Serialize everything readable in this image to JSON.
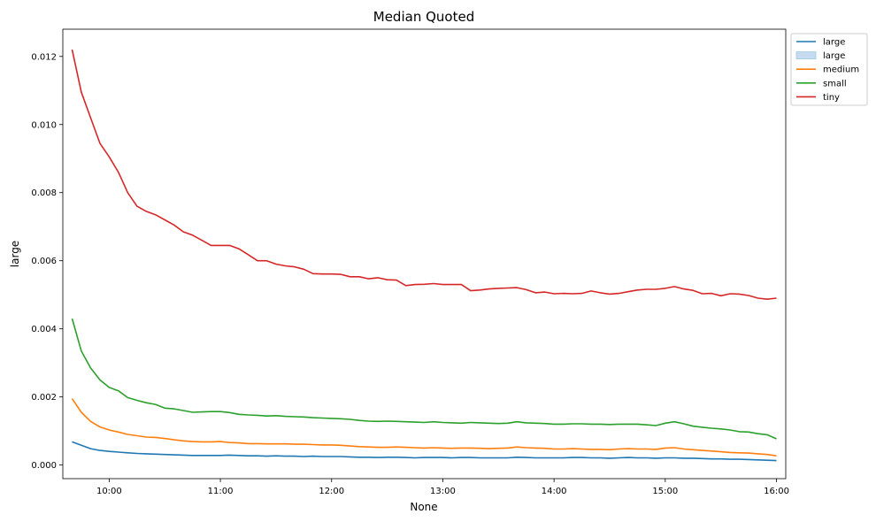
{
  "chart_data": {
    "type": "line",
    "title": "Median Quoted",
    "xlabel": "None",
    "ylabel": "large",
    "x_range": [
      "09:35",
      "16:05"
    ],
    "ylim": [
      -0.0004,
      0.0128
    ],
    "y_ticks": [
      "0.000",
      "0.002",
      "0.004",
      "0.006",
      "0.008",
      "0.010",
      "0.012"
    ],
    "x_ticks": [
      "10:00",
      "11:00",
      "12:00",
      "13:00",
      "14:00",
      "15:00",
      "16:00"
    ],
    "grid": false,
    "legend_placement": "outside-top-right",
    "x_times": [
      "09:40",
      "09:45",
      "09:50",
      "09:55",
      "10:00",
      "10:05",
      "10:10",
      "10:15",
      "10:20",
      "10:25",
      "10:30",
      "10:35",
      "10:40",
      "10:45",
      "10:50",
      "10:55",
      "11:00",
      "11:05",
      "11:10",
      "11:15",
      "11:20",
      "11:25",
      "11:30",
      "11:35",
      "11:40",
      "11:45",
      "11:50",
      "11:55",
      "12:00",
      "12:05",
      "12:10",
      "12:15",
      "12:20",
      "12:25",
      "12:30",
      "12:35",
      "12:40",
      "12:45",
      "12:50",
      "12:55",
      "13:00",
      "13:05",
      "13:10",
      "13:15",
      "13:20",
      "13:25",
      "13:30",
      "13:35",
      "13:40",
      "13:45",
      "13:50",
      "13:55",
      "14:00",
      "14:05",
      "14:10",
      "14:15",
      "14:20",
      "14:25",
      "14:30",
      "14:35",
      "14:40",
      "14:45",
      "14:50",
      "14:55",
      "15:00",
      "15:05",
      "15:10",
      "15:15",
      "15:20",
      "15:25",
      "15:30",
      "15:35",
      "15:40",
      "15:45",
      "15:50",
      "15:55",
      "16:00"
    ],
    "series": [
      {
        "name": "large",
        "color": "#1f77b4",
        "values": [
          0.00068,
          0.00058,
          0.00048,
          0.00043,
          0.0004,
          0.00038,
          0.00036,
          0.00034,
          0.00033,
          0.00032,
          0.00031,
          0.0003,
          0.00029,
          0.00028,
          0.00028,
          0.00028,
          0.00028,
          0.00029,
          0.00028,
          0.00027,
          0.00027,
          0.00026,
          0.00027,
          0.00026,
          0.00026,
          0.00025,
          0.00026,
          0.00025,
          0.00025,
          0.00025,
          0.00024,
          0.00023,
          0.00023,
          0.00022,
          0.00023,
          0.00023,
          0.00022,
          0.00021,
          0.00022,
          0.00022,
          0.00022,
          0.00021,
          0.00022,
          0.00022,
          0.00021,
          0.00021,
          0.00021,
          0.00021,
          0.00023,
          0.00022,
          0.00021,
          0.00021,
          0.00021,
          0.00021,
          0.00022,
          0.00022,
          0.00021,
          0.00021,
          0.0002,
          0.00021,
          0.00022,
          0.00021,
          0.00021,
          0.0002,
          0.00021,
          0.00021,
          0.0002,
          0.0002,
          0.00019,
          0.00018,
          0.00018,
          0.00017,
          0.00017,
          0.00016,
          0.00015,
          0.00014,
          0.00013
        ]
      },
      {
        "name": "medium",
        "color": "#ff7f0e",
        "values": [
          0.00195,
          0.00155,
          0.00128,
          0.00112,
          0.00103,
          0.00097,
          0.0009,
          0.00086,
          0.00082,
          0.00081,
          0.00078,
          0.00074,
          0.00071,
          0.00069,
          0.00068,
          0.00068,
          0.00069,
          0.00066,
          0.00065,
          0.00063,
          0.00063,
          0.00062,
          0.00062,
          0.00062,
          0.00061,
          0.00061,
          0.0006,
          0.00059,
          0.00059,
          0.00058,
          0.00056,
          0.00054,
          0.00053,
          0.00052,
          0.00052,
          0.00053,
          0.00052,
          0.00051,
          0.0005,
          0.00051,
          0.0005,
          0.00049,
          0.0005,
          0.0005,
          0.00049,
          0.00048,
          0.00049,
          0.0005,
          0.00053,
          0.00051,
          0.0005,
          0.00049,
          0.00047,
          0.00047,
          0.00048,
          0.00047,
          0.00046,
          0.00046,
          0.00045,
          0.00047,
          0.00048,
          0.00047,
          0.00047,
          0.00046,
          0.0005,
          0.00051,
          0.00047,
          0.00045,
          0.00043,
          0.00041,
          0.00039,
          0.00037,
          0.00036,
          0.00035,
          0.00033,
          0.00031,
          0.00027
        ]
      },
      {
        "name": "small",
        "color": "#2ca02c",
        "values": [
          0.0043,
          0.00335,
          0.00285,
          0.0025,
          0.00228,
          0.00218,
          0.00198,
          0.0019,
          0.00183,
          0.00178,
          0.00167,
          0.00165,
          0.0016,
          0.00155,
          0.00156,
          0.00157,
          0.00157,
          0.00154,
          0.00149,
          0.00147,
          0.00146,
          0.00144,
          0.00145,
          0.00143,
          0.00142,
          0.00141,
          0.00139,
          0.00138,
          0.00137,
          0.00136,
          0.00134,
          0.00131,
          0.00129,
          0.00128,
          0.00129,
          0.00128,
          0.00127,
          0.00126,
          0.00125,
          0.00127,
          0.00125,
          0.00124,
          0.00123,
          0.00125,
          0.00124,
          0.00123,
          0.00122,
          0.00123,
          0.00127,
          0.00124,
          0.00123,
          0.00122,
          0.0012,
          0.0012,
          0.00121,
          0.00121,
          0.0012,
          0.0012,
          0.00119,
          0.0012,
          0.0012,
          0.0012,
          0.00118,
          0.00116,
          0.00123,
          0.00127,
          0.00121,
          0.00114,
          0.00111,
          0.00108,
          0.00106,
          0.00103,
          0.00098,
          0.00097,
          0.00092,
          0.00089,
          0.00077
        ]
      },
      {
        "name": "tiny",
        "color": "#d62728",
        "values": [
          0.0122,
          0.01095,
          0.0102,
          0.00945,
          0.00905,
          0.0086,
          0.008,
          0.0076,
          0.00745,
          0.00735,
          0.0072,
          0.00705,
          0.00685,
          0.00675,
          0.0066,
          0.00645,
          0.00645,
          0.00645,
          0.00635,
          0.00618,
          0.006,
          0.006,
          0.0059,
          0.00585,
          0.00582,
          0.00575,
          0.00562,
          0.00561,
          0.00561,
          0.0056,
          0.00553,
          0.00553,
          0.00547,
          0.0055,
          0.00544,
          0.00543,
          0.00527,
          0.0053,
          0.00531,
          0.00533,
          0.0053,
          0.0053,
          0.0053,
          0.00512,
          0.00514,
          0.00517,
          0.00519,
          0.0052,
          0.00521,
          0.00515,
          0.00506,
          0.00508,
          0.00503,
          0.00504,
          0.00503,
          0.00504,
          0.00511,
          0.00506,
          0.00502,
          0.00504,
          0.00509,
          0.00514,
          0.00516,
          0.00516,
          0.00519,
          0.00524,
          0.00517,
          0.00513,
          0.00503,
          0.00504,
          0.00497,
          0.00503,
          0.00502,
          0.00498,
          0.0049,
          0.00487,
          0.0049
        ]
      }
    ],
    "legend": [
      {
        "label": "large",
        "kind": "line",
        "color": "#1f77b4"
      },
      {
        "label": "large",
        "kind": "patch",
        "color": "#c6dbef"
      },
      {
        "label": "medium",
        "kind": "line",
        "color": "#ff7f0e"
      },
      {
        "label": "small",
        "kind": "line",
        "color": "#2ca02c"
      },
      {
        "label": "tiny",
        "kind": "line",
        "color": "#d62728"
      }
    ]
  }
}
